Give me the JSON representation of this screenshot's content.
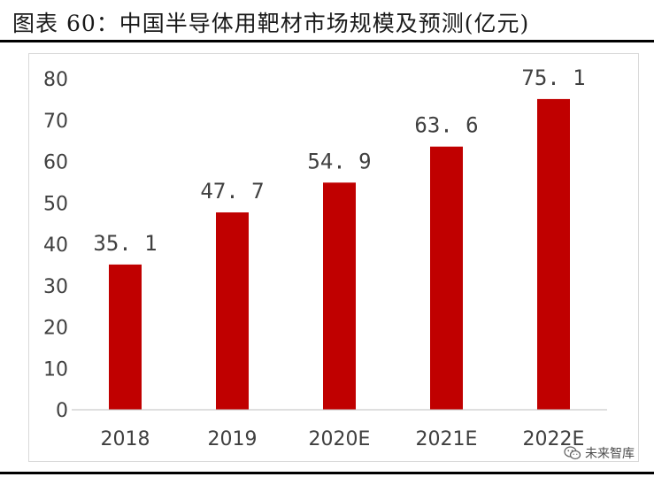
{
  "header": {
    "title": "图表 60：中国半导体用靶材市场规模及预测(亿元)"
  },
  "watermark": {
    "text": "未来智库",
    "icon": "wechat-icon"
  },
  "chart_data": {
    "type": "bar",
    "title": "",
    "xlabel": "",
    "ylabel": "",
    "categories": [
      "2018",
      "2019",
      "2020E",
      "2021E",
      "2022E"
    ],
    "values": [
      35.1,
      47.7,
      54.9,
      63.6,
      75.1
    ],
    "value_labels": [
      "35. 1",
      "47. 7",
      "54. 9",
      "63. 6",
      "75. 1"
    ],
    "ylim": [
      0,
      80
    ],
    "yticks": [
      "0",
      "10",
      "20",
      "30",
      "40",
      "50",
      "60",
      "70",
      "80"
    ],
    "bar_color": "#c00000",
    "grid": false,
    "legend": "none"
  }
}
